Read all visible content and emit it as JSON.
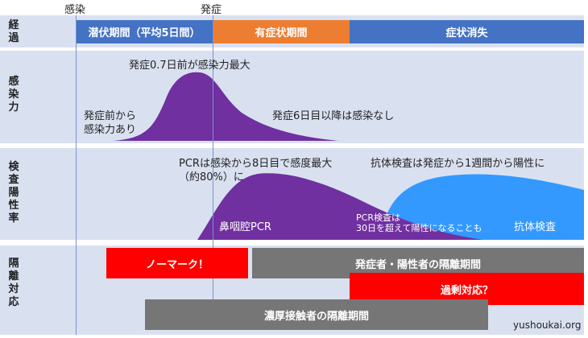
{
  "markers": {
    "infection": "感染",
    "onset": "発症"
  },
  "rows": {
    "course": "経\n過",
    "infectivity": "感\n染\n力",
    "positivity": "検\n査\n陽\n性\n率",
    "isolation": "隔\n離\n対\n応"
  },
  "phases": [
    {
      "label": "潜伏期間（平均5日間）",
      "color": "#4472c4"
    },
    {
      "label": "有症状期間",
      "color": "#ed7d31"
    },
    {
      "label": "症状消失",
      "color": "#4472c4"
    }
  ],
  "infectivity": {
    "peak_note": "発症0.7日前が感染力最大",
    "pre_onset_note": "発症前から\n感染力あり",
    "after_note": "発症6日目以降は感染なし",
    "color": "#7030a0"
  },
  "positivity": {
    "pcr_note": "PCRは感染から8日目で感度最大\n（約80%）に",
    "antibody_note": "抗体検査は発症から1週間から陽性に",
    "pcr_label": "鼻咽腔PCR",
    "pcr_small_note": "PCR検査は\n30日を超えて陽性になることも",
    "antibody_label": "抗体検査",
    "pcr_color": "#7030a0",
    "antibody_color": "#3399ff"
  },
  "isolation": {
    "no_mark": "ノーマーク！",
    "patients": "発症者・陽性者の隔離期間",
    "overreaction": "過剰対応？",
    "contacts": "濃厚接触者の隔離期間",
    "red": "#ff0000",
    "gray": "#767676"
  },
  "footer": {
    "site": "yushoukai.org"
  }
}
